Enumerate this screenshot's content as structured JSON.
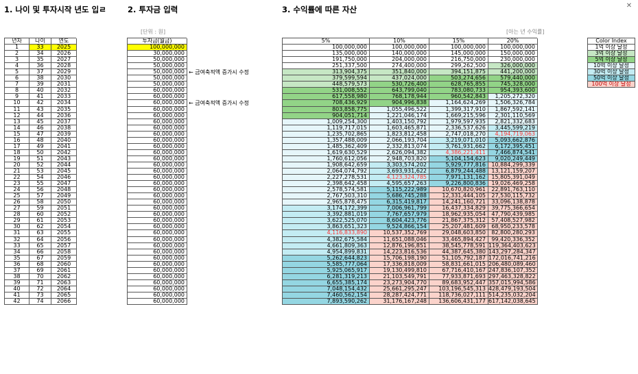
{
  "headers": {
    "section1": "1. 나이 및 투자시작 년도 입ㄹ",
    "section2": "2. 투자금 입력",
    "section3": "3. 수익률에 따른 자산"
  },
  "units": {
    "investment": "[단위 : 원]",
    "rate": "[아는 년 수익률]"
  },
  "columns": {
    "year_num": "년차",
    "age": "나이",
    "year": "연도",
    "investment": "투자금(월금)",
    "r5": "5%",
    "r10": "10%",
    "r15": "15%",
    "r20": "20%"
  },
  "notes": [
    "← 금여축적액 증가시 수정",
    "← 금여축적액 증가시 수정"
  ],
  "color_index": {
    "title": "Color Index",
    "items": [
      "1억 이상 달성",
      "3억 이상 달성",
      "5억 이상 달성",
      "10억 이상 달성",
      "30억 이상 달성",
      "50억 이상 달성",
      "100억 이상 달성"
    ],
    "colors": [
      "#ffffff",
      "#c6e7c4",
      "#92d487",
      "#e6f6fa",
      "#c3ecf3",
      "#94d6e2",
      "#fbd3cb"
    ]
  },
  "rows": [
    [
      "1",
      "33",
      "2025",
      "100,000,000",
      "100,000,000",
      "100,000,000",
      "100,000,000",
      "100,000,000"
    ],
    [
      "2",
      "34",
      "2026",
      "30,000,000",
      "135,000,000",
      "140,000,000",
      "145,000,000",
      "150,000,000"
    ],
    [
      "3",
      "35",
      "2027",
      "50,000,000",
      "191,750,000",
      "204,000,000",
      "216,750,000",
      "230,000,000"
    ],
    [
      "4",
      "36",
      "2028",
      "50,000,000",
      "251,337,500",
      "274,400,000",
      "299,262,500",
      "326,000,000"
    ],
    [
      "5",
      "37",
      "2029",
      "50,000,000",
      "313,904,375",
      "351,840,000",
      "394,151,875",
      "441,200,000"
    ],
    [
      "6",
      "38",
      "2030",
      "50,000,000",
      "379,599,594",
      "437,024,000",
      "503,274,656",
      "579,440,000"
    ],
    [
      "7",
      "39",
      "2031",
      "50,000,000",
      "448,579,573",
      "530,726,400",
      "628,765,855",
      "745,328,000"
    ],
    [
      "8",
      "40",
      "2032",
      "60,000,000",
      "531,008,552",
      "643,799,040",
      "783,080,733",
      "954,393,600"
    ],
    [
      "9",
      "41",
      "2033",
      "60,000,000",
      "617,558,980",
      "768,178,944",
      "960,542,843",
      "1,205,272,320"
    ],
    [
      "10",
      "42",
      "2034",
      "60,000,000",
      "708,436,929",
      "904,996,838",
      "1,164,624,269",
      "1,506,326,784"
    ],
    [
      "11",
      "43",
      "2035",
      "60,000,000",
      "803,858,775",
      "1,055,496,522",
      "1,399,317,910",
      "1,867,592,141"
    ],
    [
      "12",
      "44",
      "2036",
      "60,000,000",
      "904,051,714",
      "1,221,046,174",
      "1,669,215,596",
      "2,301,110,569"
    ],
    [
      "13",
      "45",
      "2037",
      "60,000,000",
      "1,009,254,300",
      "1,403,150,792",
      "1,979,597,935",
      "2,821,332,683"
    ],
    [
      "14",
      "46",
      "2038",
      "60,000,000",
      "1,119,717,015",
      "1,603,465,871",
      "2,336,537,626",
      "3,445,599,219"
    ],
    [
      "15",
      "47",
      "2039",
      "60,000,000",
      "1,235,702,865",
      "1,823,812,458",
      "2,747,018,270",
      "4,194,719,063"
    ],
    [
      "16",
      "48",
      "2040",
      "60,000,000",
      "1,357,488,009",
      "2,066,193,704",
      "3,219,071,010",
      "5,093,662,876"
    ],
    [
      "17",
      "49",
      "2041",
      "60,000,000",
      "1,485,362,409",
      "2,332,813,074",
      "3,761,931,662",
      "6,172,395,451"
    ],
    [
      "18",
      "50",
      "2042",
      "60,000,000",
      "1,619,630,529",
      "2,626,094,382",
      "4,386,221,411",
      "7,466,874,541"
    ],
    [
      "19",
      "51",
      "2043",
      "60,000,000",
      "1,760,612,056",
      "2,948,703,820",
      "5,104,154,623",
      "9,020,249,449"
    ],
    [
      "20",
      "52",
      "2044",
      "60,000,000",
      "1,908,642,659",
      "3,303,574,202",
      "5,929,777,816",
      "10,884,299,339"
    ],
    [
      "21",
      "53",
      "2045",
      "60,000,000",
      "2,064,074,792",
      "3,693,931,622",
      "6,879,244,488",
      "13,121,159,207"
    ],
    [
      "22",
      "54",
      "2046",
      "60,000,000",
      "2,227,278,531",
      "4,123,324,785",
      "7,971,131,162",
      "15,805,391,049"
    ],
    [
      "23",
      "55",
      "2047",
      "60,000,000",
      "2,398,642,458",
      "4,595,657,263",
      "9,226,800,836",
      "19,026,469,258"
    ],
    [
      "24",
      "56",
      "2048",
      "60,000,000",
      "2,578,574,581",
      "5,115,222,989",
      "10,670,820,961",
      "22,891,763,110"
    ],
    [
      "25",
      "57",
      "2049",
      "60,000,000",
      "2,767,503,310",
      "5,686,745,288",
      "12,331,444,105",
      "27,530,115,732"
    ],
    [
      "26",
      "58",
      "2050",
      "60,000,000",
      "2,965,878,475",
      "6,315,419,817",
      "14,241,160,721",
      "33,096,138,878"
    ],
    [
      "27",
      "59",
      "2051",
      "60,000,000",
      "3,174,172,399",
      "7,006,961,799",
      "16,437,334,829",
      "39,775,366,654"
    ],
    [
      "28",
      "60",
      "2052",
      "60,000,000",
      "3,392,881,019",
      "7,767,657,979",
      "18,962,935,054",
      "47,790,439,985"
    ],
    [
      "29",
      "61",
      "2053",
      "60,000,000",
      "3,622,525,070",
      "8,604,423,776",
      "21,867,375,312",
      "57,408,527,982"
    ],
    [
      "30",
      "62",
      "2054",
      "60,000,000",
      "3,863,651,323",
      "9,524,866,154",
      "25,207,481,609",
      "68,950,233,578"
    ],
    [
      "31",
      "63",
      "2055",
      "60,000,000",
      "4,116,833,890",
      "10,537,352,769",
      "29,048,603,850",
      "82,800,280,293"
    ],
    [
      "32",
      "64",
      "2056",
      "60,000,000",
      "4,382,675,584",
      "11,651,088,046",
      "33,465,894,427",
      "99,420,336,352"
    ],
    [
      "33",
      "65",
      "2057",
      "60,000,000",
      "4,661,809,363",
      "12,876,196,851",
      "38,545,778,591",
      "119,364,403,623"
    ],
    [
      "34",
      "66",
      "2058",
      "60,000,000",
      "4,954,899,831",
      "14,223,816,536",
      "44,387,645,380",
      "143,297,284,347"
    ],
    [
      "35",
      "67",
      "2059",
      "60,000,000",
      "5,262,644,823",
      "15,706,198,190",
      "51,105,792,187",
      "172,016,741,216"
    ],
    [
      "36",
      "68",
      "2060",
      "60,000,000",
      "5,585,777,064",
      "17,336,818,009",
      "58,831,661,015",
      "206,480,089,460"
    ],
    [
      "37",
      "69",
      "2061",
      "60,000,000",
      "5,925,065,917",
      "19,130,499,810",
      "67,716,410,167",
      "247,836,107,352"
    ],
    [
      "38",
      "70",
      "2062",
      "60,000,000",
      "6,281,319,213",
      "21,103,549,791",
      "77,933,871,693",
      "297,463,328,822"
    ],
    [
      "39",
      "71",
      "2063",
      "60,000,000",
      "6,655,385,174",
      "23,273,904,770",
      "89,683,952,447",
      "357,015,994,586"
    ],
    [
      "40",
      "72",
      "2064",
      "60,000,000",
      "7,048,154,432",
      "25,661,295,247",
      "103,196,545,313",
      "428,479,193,504"
    ],
    [
      "41",
      "73",
      "2065",
      "60,000,000",
      "7,460,562,154",
      "28,287,424,771",
      "118,736,027,111",
      "514,235,032,204"
    ],
    [
      "42",
      "74",
      "2066",
      "60,000,000",
      "7,893,590,262",
      "31,176,167,248",
      "136,606,431,177",
      "617,142,038,645"
    ]
  ]
}
